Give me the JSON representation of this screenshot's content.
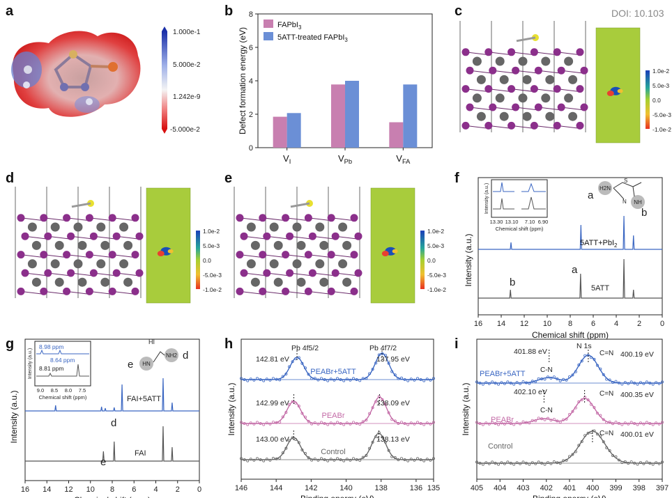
{
  "doi": "DOI: 10.103",
  "panels": [
    "a",
    "b",
    "c",
    "d",
    "e",
    "f",
    "g",
    "h",
    "i"
  ],
  "esp_scale": [
    "1.000e-1",
    "5.000e-2",
    "1.242e-9",
    "-5.000e-2"
  ],
  "cdd_scale": [
    "1.0e-2",
    "5.0e-3",
    "0.0",
    "-5.0e-3",
    "-1.0e-2"
  ],
  "chart_b": {
    "type": "bar",
    "ylabel": "Defect formation energy (eV)",
    "ylim": [
      0,
      8
    ],
    "yticks": [
      "0",
      "2",
      "4",
      "6",
      "8"
    ],
    "categories": [
      "V_I",
      "V_Pb",
      "V_FA"
    ],
    "cat_main": [
      "V",
      "V",
      "V"
    ],
    "cat_sub": [
      "I",
      "Pb",
      "FA"
    ],
    "series": [
      {
        "name": "FAPbI3",
        "name_main": "FAPbI",
        "name_sub": "3",
        "values": [
          1.85,
          3.78,
          1.52
        ],
        "color": "#c87fb0"
      },
      {
        "name": "5ATT-treated FAPbI3",
        "name_main": "5ATT-treated FAPbI",
        "name_sub": "3",
        "values": [
          2.07,
          4.0,
          3.78
        ],
        "color": "#6b8fd6"
      }
    ]
  },
  "chart_f": {
    "type": "line",
    "xlabel": "Chemical shift (ppm)",
    "ylabel": "Intensity (a.u.)",
    "xticks": [
      "16",
      "14",
      "12",
      "10",
      "8",
      "6",
      "4",
      "2",
      "0"
    ],
    "series": [
      {
        "name": "5ATT+PbI2",
        "label_main": "5ATT+PbI",
        "label_sub": "2",
        "peaks_ppm": [
          13.15,
          7.07,
          3.33,
          2.5
        ],
        "color": "#3a66c2"
      },
      {
        "name": "5ATT",
        "peaks_ppm": [
          13.2,
          7.1,
          3.33,
          2.5
        ],
        "color": "#555555"
      }
    ],
    "annotations": [
      "a",
      "b"
    ],
    "inset": {
      "ylabel": "Intensity (a.u.)",
      "xlabel": "Chemical shift (ppm)",
      "xticks": [
        "13.30",
        "13.10",
        "7.10",
        "6.90"
      ]
    },
    "molecule": {
      "a": "a",
      "b": "b",
      "h2n": "H2N",
      "s": "S",
      "n": "N",
      "nh": "NH"
    }
  },
  "chart_g": {
    "type": "line",
    "xlabel": "Chemical shift (ppm)",
    "ylabel": "Intensity (a.u.)",
    "xticks": [
      "16",
      "14",
      "12",
      "10",
      "8",
      "6",
      "4",
      "2",
      "0"
    ],
    "series": [
      {
        "name": "FAI+5ATT",
        "peaks_ppm": [
          13.2,
          8.98,
          8.64,
          7.82,
          7.1,
          3.33,
          2.5
        ],
        "color": "#3a66c2"
      },
      {
        "name": "FAI",
        "peaks_ppm": [
          8.81,
          7.82,
          3.33,
          2.5
        ],
        "color": "#555555"
      }
    ],
    "annotations": [
      "e",
      "d"
    ],
    "inset": {
      "ylabel": "Intensity (a.u.)",
      "xlabel": "Chemical shift (ppm)",
      "xticks": [
        "9.0",
        "8.5",
        "8.0",
        "7.5"
      ],
      "labels": [
        "8.98 ppm",
        "8.64 ppm",
        "8.81 ppm"
      ]
    },
    "molecule": {
      "e": "e",
      "d": "d",
      "hi": "HI",
      "hn": "HN",
      "nh2": "NH2"
    }
  },
  "chart_h": {
    "type": "line",
    "xlabel": "Binding energy (eV)",
    "ylabel": "Intensity (a.u.)",
    "xticks": [
      "146",
      "144",
      "142",
      "140",
      "138",
      "136",
      "135"
    ],
    "peak_labels": [
      "Pb 4f5/2",
      "Pb 4f7/2"
    ],
    "series": [
      {
        "name": "PEABr+5ATT",
        "peaks_ev": [
          142.81,
          137.95
        ],
        "labels": [
          "142.81 eV",
          "137.95 eV"
        ],
        "color": "#3a66c2"
      },
      {
        "name": "PEABr",
        "peaks_ev": [
          142.99,
          138.09
        ],
        "labels": [
          "142.99 eV",
          "138.09  eV"
        ],
        "color": "#c36aa6"
      },
      {
        "name": "Control",
        "peaks_ev": [
          143.0,
          138.13
        ],
        "labels": [
          "143.00 eV",
          "138.13 eV"
        ],
        "color": "#666666"
      }
    ]
  },
  "chart_i": {
    "type": "line",
    "xlabel": "Binding energy (eV)",
    "ylabel": "Intensity (a.u.)",
    "xticks": [
      "405",
      "404",
      "403",
      "402",
      "401",
      "400",
      "399",
      "398",
      "397"
    ],
    "title_label": "N 1s",
    "series": [
      {
        "name": "PEABr+5ATT",
        "peaks_ev": [
          401.88,
          400.19
        ],
        "labels": [
          "401.88 eV",
          "400.19 eV"
        ],
        "assign": [
          "C-N",
          "C=N"
        ],
        "color": "#3a66c2"
      },
      {
        "name": "PEABr",
        "peaks_ev": [
          402.1,
          400.35
        ],
        "labels": [
          "402.10 eV",
          "400.35 eV"
        ],
        "assign": [
          "C-N",
          "C=N"
        ],
        "color": "#c36aa6"
      },
      {
        "name": "Control",
        "peaks_ev": [
          400.01
        ],
        "labels": [
          "400.01 eV"
        ],
        "assign": [
          "C=N"
        ],
        "color": "#666666"
      }
    ]
  }
}
